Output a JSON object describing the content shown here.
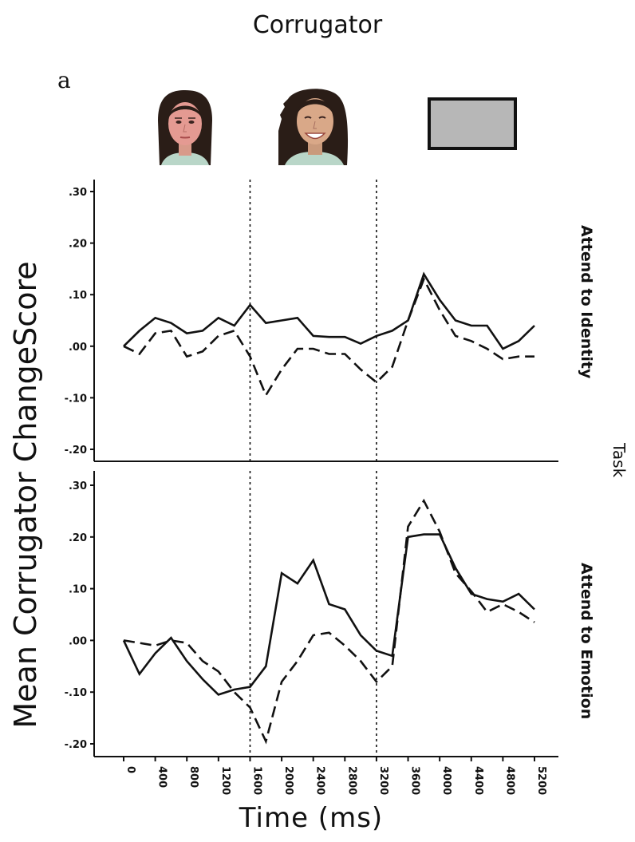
{
  "title": "Corrugator",
  "panel_letter": "a",
  "stimuli": [
    "neutral-face-photo",
    "smiling-face-photo",
    "gray-rectangle"
  ],
  "colors": {
    "line": "#111111",
    "gray_box": "#b7b7b7"
  },
  "chart_data": {
    "type": "line",
    "title": "Corrugator",
    "xlabel": "Time (ms)",
    "ylabel": "Mean Corrugator ChangeScore",
    "facet_label": "Task",
    "x": [
      0,
      200,
      400,
      600,
      800,
      1000,
      1200,
      1400,
      1600,
      1800,
      2000,
      2200,
      2400,
      2600,
      2800,
      3000,
      3200,
      3400,
      3600,
      3800,
      4000,
      4200,
      4400,
      4600,
      4800,
      5000,
      5200
    ],
    "x_ticks": [
      0,
      400,
      800,
      1200,
      1600,
      2000,
      2400,
      2800,
      3200,
      3600,
      4000,
      4400,
      4800,
      5200
    ],
    "x_tick_labels": [
      "0",
      "400",
      "800",
      "1200",
      "1600",
      "2000",
      "2400",
      "2800",
      "3200",
      "3600",
      "4000",
      "4400",
      "4800",
      "5200"
    ],
    "vertical_reference_lines": [
      1600,
      3200
    ],
    "xlim": [
      0,
      5200
    ],
    "panels": [
      {
        "label": "Attend to Identity",
        "ylim": [
          -0.22,
          0.33
        ],
        "y_ticks": [
          -0.2,
          -0.1,
          0.0,
          0.1,
          0.2,
          0.3
        ],
        "y_tick_labels": [
          "-.20",
          "-.10",
          ".00",
          ".10",
          ".20",
          ".30"
        ],
        "series": [
          {
            "style": "solid",
            "values": [
              0.0,
              0.03,
              0.055,
              0.045,
              0.025,
              0.03,
              0.055,
              0.04,
              0.08,
              0.045,
              0.05,
              0.055,
              0.02,
              0.018,
              0.018,
              0.005,
              0.02,
              0.03,
              0.05,
              0.14,
              0.09,
              0.05,
              0.04,
              0.04,
              -0.005,
              0.01,
              0.04
            ]
          },
          {
            "style": "dashed",
            "values": [
              0.0,
              -0.015,
              0.025,
              0.03,
              -0.02,
              -0.01,
              0.02,
              0.03,
              -0.02,
              -0.095,
              -0.045,
              -0.005,
              -0.005,
              -0.015,
              -0.015,
              -0.045,
              -0.07,
              -0.04,
              0.05,
              0.13,
              0.07,
              0.02,
              0.01,
              -0.005,
              -0.025,
              -0.02,
              -0.02
            ]
          }
        ]
      },
      {
        "label": "Attend to Emotion",
        "ylim": [
          -0.22,
          0.32
        ],
        "y_ticks": [
          -0.2,
          -0.1,
          0.0,
          0.1,
          0.2,
          0.3
        ],
        "y_tick_labels": [
          "-.20",
          "-.10",
          ".00",
          ".10",
          ".20",
          ".30"
        ],
        "series": [
          {
            "style": "solid",
            "values": [
              0.0,
              -0.065,
              -0.025,
              0.005,
              -0.04,
              -0.075,
              -0.105,
              -0.095,
              -0.09,
              -0.05,
              0.13,
              0.11,
              0.155,
              0.07,
              0.06,
              0.01,
              -0.02,
              -0.03,
              0.2,
              0.205,
              0.205,
              0.14,
              0.09,
              0.08,
              0.075,
              0.09,
              0.06
            ]
          },
          {
            "style": "dashed",
            "values": [
              0.0,
              -0.005,
              -0.01,
              0.0,
              -0.005,
              -0.04,
              -0.06,
              -0.1,
              -0.13,
              -0.195,
              -0.08,
              -0.04,
              0.01,
              0.015,
              -0.01,
              -0.04,
              -0.08,
              -0.05,
              0.22,
              0.27,
              0.21,
              0.13,
              0.095,
              0.055,
              0.07,
              0.055,
              0.035
            ]
          }
        ]
      }
    ]
  }
}
